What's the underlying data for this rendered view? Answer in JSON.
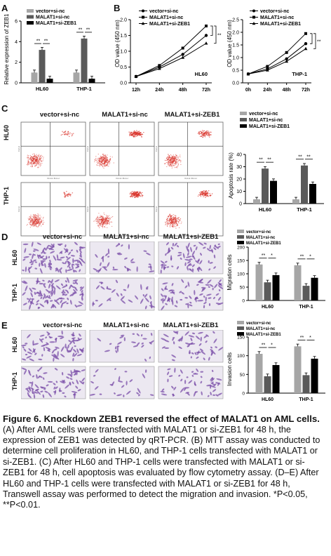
{
  "panel_letters": [
    "A",
    "B",
    "C",
    "D",
    "E"
  ],
  "legend": {
    "vector": "vector+si-nc",
    "malat1": "MALAT1+si-nc",
    "malat1_zeb1": "MALAT1+si-ZEB1",
    "malat1_zeb1_line": "MALAT1+si-ZEB1",
    "dash_vector": "vector+si-nc",
    "dash_malat1": "MALAT1+si-nc",
    "dash_malat1_zeb1": "MALAT1+si-ZEB1"
  },
  "group_headers": [
    "vector+si-nc",
    "MALAT1+si-nc",
    "MALAT1+si-ZEB1"
  ],
  "cell_lines": [
    "HL60",
    "THP-1"
  ],
  "significance": {
    "double": "**",
    "single": "*"
  },
  "colors": {
    "vector": "#a6a6a6",
    "malat1": "#5a5a5a",
    "zeb1": "#000000",
    "flow_dot": "#d9342b",
    "stain": "#7b4fa8"
  },
  "chart_data": [
    {
      "type": "bar",
      "panel": "A",
      "ylabel": "Relative expression of ZEB1",
      "categories": [
        "HL60",
        "THP-1"
      ],
      "ylim": [
        0,
        6
      ],
      "yticks": [
        "0",
        "2",
        "4",
        "6"
      ],
      "series": [
        {
          "name": "vector+si-nc",
          "values": [
            1.0,
            1.0
          ]
        },
        {
          "name": "MALAT1+si-nc",
          "values": [
            3.2,
            4.3
          ]
        },
        {
          "name": "MALAT1+si-ZEB1",
          "values": [
            0.4,
            0.4
          ]
        }
      ]
    },
    {
      "type": "line",
      "panel": "B",
      "ylabel": "OD value (450 nm)",
      "inner_label": "HL60",
      "x": [
        "12h",
        "24h",
        "48h",
        "72h"
      ],
      "ylim": [
        0.0,
        2.0
      ],
      "yticks": [
        "0.0",
        "0.5",
        "1.0",
        "1.5",
        "2.0"
      ],
      "series": [
        {
          "name": "vector+si-nc",
          "values": [
            0.2,
            0.5,
            0.9,
            1.5
          ]
        },
        {
          "name": "MALAT1+si-nc",
          "values": [
            0.2,
            0.55,
            1.1,
            1.8
          ]
        },
        {
          "name": "MALAT1+si-ZEB1",
          "values": [
            0.2,
            0.45,
            0.8,
            1.25
          ]
        }
      ]
    },
    {
      "type": "line",
      "panel": "B",
      "ylabel": "OD value (450 nm)",
      "inner_label": "THP-1",
      "x": [
        "0h",
        "24h",
        "48h",
        "72h"
      ],
      "ylim": [
        0.0,
        2.5
      ],
      "yticks": [
        "0.0",
        "0.5",
        "1.0",
        "1.5",
        "2.0",
        "2.5"
      ],
      "series": [
        {
          "name": "vector+si-nc",
          "values": [
            0.35,
            0.55,
            0.95,
            1.55
          ]
        },
        {
          "name": "MALAT1+si-nc",
          "values": [
            0.35,
            0.65,
            1.2,
            1.95
          ]
        },
        {
          "name": "MALAT1+si-ZEB1",
          "values": [
            0.35,
            0.5,
            0.85,
            1.35
          ]
        }
      ]
    },
    {
      "type": "bar",
      "panel": "C",
      "ylabel": "Apoptosis rate (%)",
      "categories": [
        "HL60",
        "THP-1"
      ],
      "ylim": [
        0,
        40
      ],
      "yticks": [
        "0",
        "10",
        "20",
        "30",
        "40"
      ],
      "series": [
        {
          "name": "vector+si-nc",
          "values": [
            3.5,
            3.5
          ]
        },
        {
          "name": "MALAT1+si-nc",
          "values": [
            28.5,
            31
          ]
        },
        {
          "name": "MALAT1+si-ZEB1",
          "values": [
            18.5,
            16
          ]
        }
      ]
    },
    {
      "type": "bar",
      "panel": "D",
      "ylabel": "Migration cells",
      "categories": [
        "HL60",
        "THP-1"
      ],
      "ylim": [
        0,
        200
      ],
      "yticks": [
        "0",
        "50",
        "100",
        "150",
        "200"
      ],
      "series": [
        {
          "name": "vector+si-nc",
          "values": [
            135,
            132
          ]
        },
        {
          "name": "MALAT1+si-nc",
          "values": [
            68,
            55
          ]
        },
        {
          "name": "MALAT1+si-ZEB1",
          "values": [
            95,
            85
          ]
        }
      ]
    },
    {
      "type": "bar",
      "panel": "E",
      "ylabel": "Invasion cells",
      "categories": [
        "HL60",
        "THP-1"
      ],
      "ylim": [
        0,
        150
      ],
      "yticks": [
        "0",
        "50",
        "100",
        "150"
      ],
      "series": [
        {
          "name": "vector+si-nc",
          "values": [
            105,
            125
          ]
        },
        {
          "name": "MALAT1+si-nc",
          "values": [
            45,
            48
          ]
        },
        {
          "name": "MALAT1+si-ZEB1",
          "values": [
            75,
            92
          ]
        }
      ]
    }
  ],
  "flow_axis_labels": {
    "x": "FL1-H::FL1-H",
    "y": "FL2-H"
  },
  "caption": {
    "title": "Figure 6. Knockdown ZEB1 reversed the effect of MALAT1 on AML cells.",
    "body": "(A) After AML cells were transfected with MALAT1 or si-ZEB1 for 48 h, the expression of ZEB1 was detected by qRT-PCR. (B) MTT assay was conducted to determine cell proliferation in HL60, and THP-1 cells transfected with MALAT1 or si-ZEB1. (C) After HL60 and THP-1 cells were transfected with MALAT1 or si-ZEB1 for 48 h, cell apoptosis was evaluated by flow cytometry assay. (D–E) After HL60 and THP-1 cells were transfected with MALAT1 or si-ZEB1 for 48 h, Transwell assay was performed to detect the migration and invasion. *P<0.05, **P<0.01."
  }
}
